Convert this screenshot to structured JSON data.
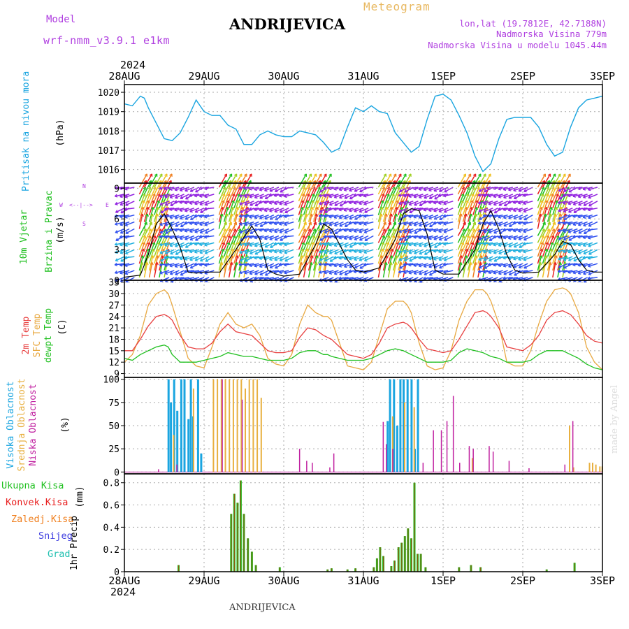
{
  "header": {
    "model_label": "Model",
    "model_name": "wrf-nmm_v3.9.1  e1km",
    "station": "ANDRIJEVICA",
    "meteogram": "Meteogram",
    "lonlat": "lon,lat (19.7812E, 42.7188N)",
    "altitude": "Nadmorska Visina 779m",
    "model_altitude": "Nadmorska Visina u modelu 1045.44m",
    "footer_station": "ANDRIJEVICA",
    "credit": "made by Angel"
  },
  "colors": {
    "pressure": "#1aa5e0",
    "wind_label": "#20c020",
    "temp2m": "#e84040",
    "sfc": "#e8a840",
    "dewpt": "#20c020",
    "cloud_high": "#1aa5e0",
    "cloud_mid": "#e8b040",
    "cloud_low": "#c020a0",
    "precip_total": "#20c020",
    "precip_conv": "#e82020",
    "precip_frozen": "#f08020",
    "snow": "#4040e0",
    "hail": "#20c0b0",
    "model_purple": "#b040e0"
  },
  "chart_data": [
    {
      "id": "pressure",
      "type": "line",
      "title": "",
      "ylabel": "Pritisak na nivou mora",
      "unit": "(hPa)",
      "ylim": [
        1015.3,
        1020.4
      ],
      "yticks": [
        "1016",
        "1017",
        "1018",
        "1019",
        "1020"
      ],
      "x_days": [
        0,
        0.1,
        0.2,
        0.25,
        0.3,
        0.4,
        0.5,
        0.6,
        0.7,
        0.8,
        0.9,
        1.0,
        1.1,
        1.2,
        1.3,
        1.4,
        1.5,
        1.6,
        1.7,
        1.8,
        1.9,
        2.0,
        2.1,
        2.2,
        2.3,
        2.4,
        2.5,
        2.6,
        2.7,
        2.8,
        2.9,
        3.0,
        3.1,
        3.2,
        3.3,
        3.4,
        3.5,
        3.6,
        3.7,
        3.8,
        3.9,
        4.0,
        4.1,
        4.2,
        4.3,
        4.4,
        4.5,
        4.6,
        4.7,
        4.8,
        4.9,
        5.0,
        5.1,
        5.2,
        5.3,
        5.4,
        5.5,
        5.6,
        5.7,
        5.8,
        5.9,
        6.0
      ],
      "series": [
        {
          "values": [
            1019.4,
            1019.3,
            1019.8,
            1019.7,
            1019.2,
            1018.4,
            1017.6,
            1017.5,
            1017.9,
            1018.7,
            1019.6,
            1019.0,
            1018.8,
            1018.8,
            1018.3,
            1018.1,
            1017.3,
            1017.3,
            1017.8,
            1018.0,
            1017.8,
            1017.7,
            1017.7,
            1018.0,
            1017.9,
            1017.8,
            1017.4,
            1016.9,
            1017.1,
            1018.2,
            1019.2,
            1019.0,
            1019.3,
            1019.0,
            1018.9,
            1017.9,
            1017.4,
            1016.9,
            1017.2,
            1018.6,
            1019.8,
            1019.9,
            1019.6,
            1018.8,
            1017.9,
            1016.7,
            1015.9,
            1016.3,
            1017.6,
            1018.6,
            1018.7,
            1018.7,
            1018.7,
            1018.2,
            1017.3,
            1016.7,
            1016.9,
            1018.2,
            1019.2,
            1019.6,
            1019.7,
            1019.8
          ]
        }
      ]
    },
    {
      "id": "wind",
      "type": "line",
      "title": "",
      "ylabel": "10m Vjetar Brzina i Pravac",
      "ylabel_line1": "10m Vjetar",
      "ylabel_line2": "Brzina i Pravac",
      "unit": "(m/s)",
      "ylim": [
        0,
        9.5
      ],
      "yticks": [
        "0",
        "3",
        "6",
        "9"
      ],
      "compass": {
        "n": "N",
        "s": "S",
        "e": "E",
        "w": "W"
      },
      "x_days": [
        0,
        0.2,
        0.3,
        0.4,
        0.5,
        0.6,
        0.7,
        0.8,
        0.9,
        1.0,
        1.2,
        1.4,
        1.5,
        1.6,
        1.7,
        1.8,
        1.9,
        2.0,
        2.2,
        2.4,
        2.5,
        2.6,
        2.7,
        2.8,
        2.9,
        3.0,
        3.2,
        3.4,
        3.5,
        3.6,
        3.7,
        3.8,
        3.9,
        4.0,
        4.2,
        4.4,
        4.5,
        4.6,
        4.7,
        4.8,
        4.9,
        5.0,
        5.2,
        5.4,
        5.5,
        5.6,
        5.7,
        5.8,
        5.9,
        6.0
      ],
      "series": [
        {
          "values": [
            0.3,
            0.5,
            2.5,
            5.5,
            6.5,
            5.0,
            3.2,
            0.8,
            0.7,
            0.8,
            0.8,
            3.0,
            4.2,
            5.3,
            4.0,
            1.0,
            0.6,
            0.4,
            0.6,
            3.5,
            5.5,
            5.0,
            3.5,
            2.0,
            1.0,
            0.8,
            1.2,
            4.0,
            6.5,
            7.0,
            6.8,
            4.5,
            1.0,
            0.6,
            0.6,
            3.0,
            5.5,
            6.8,
            5.0,
            2.5,
            1.0,
            0.7,
            0.8,
            2.5,
            3.8,
            3.5,
            2.0,
            1.0,
            0.8,
            0.8
          ]
        }
      ],
      "note": "colored wind direction arrows drawn across panel"
    },
    {
      "id": "temperature",
      "type": "line",
      "title": "",
      "ylabel": "2m Temp SFC Temp dewpt Temp",
      "label_2m": "2m Temp",
      "label_sfc": "SFC Temp",
      "label_dewpt": "dewpt Temp",
      "unit": "(C)",
      "ylim": [
        8,
        33.5
      ],
      "yticks": [
        "9",
        "12",
        "15",
        "18",
        "21",
        "24",
        "27",
        "30",
        "33"
      ],
      "x_days": [
        0,
        0.1,
        0.2,
        0.3,
        0.4,
        0.5,
        0.55,
        0.6,
        0.7,
        0.8,
        0.9,
        1.0,
        1.1,
        1.2,
        1.3,
        1.4,
        1.5,
        1.6,
        1.7,
        1.8,
        1.9,
        2.0,
        2.1,
        2.2,
        2.3,
        2.4,
        2.5,
        2.55,
        2.6,
        2.7,
        2.8,
        2.9,
        3.0,
        3.1,
        3.2,
        3.3,
        3.4,
        3.5,
        3.55,
        3.6,
        3.7,
        3.8,
        3.9,
        4.0,
        4.1,
        4.2,
        4.3,
        4.4,
        4.5,
        4.55,
        4.6,
        4.7,
        4.8,
        4.9,
        5.0,
        5.1,
        5.2,
        5.3,
        5.4,
        5.5,
        5.55,
        5.6,
        5.7,
        5.8,
        5.9,
        6.0
      ],
      "series": [
        {
          "name": "2m Temp",
          "values": [
            15,
            15,
            18,
            21.5,
            24,
            24.5,
            24,
            23,
            19,
            16,
            15.5,
            15.5,
            17,
            20,
            22,
            20,
            19.5,
            19,
            17,
            15,
            14.5,
            14.5,
            15,
            18.5,
            21,
            20.5,
            19,
            18.5,
            18,
            16,
            14,
            13.5,
            13,
            14,
            17,
            21,
            22,
            22.5,
            22,
            21,
            18,
            15.5,
            15,
            14.5,
            15,
            18,
            21.5,
            25,
            25.5,
            25,
            24,
            21,
            16,
            15.5,
            15,
            16.5,
            19,
            23,
            25,
            25.5,
            25,
            24.5,
            22,
            19,
            17.5,
            17
          ]
        },
        {
          "name": "SFC Temp",
          "values": [
            12,
            14,
            19,
            27,
            30,
            31,
            30,
            27,
            20,
            13,
            11,
            10.5,
            16,
            22,
            25,
            22,
            21,
            22,
            19,
            13,
            11.5,
            11,
            14,
            22,
            27,
            25,
            24,
            24,
            23,
            17,
            11,
            10.5,
            10,
            12,
            19,
            26,
            28,
            28,
            27,
            25,
            17,
            11,
            10,
            10.5,
            15,
            23,
            28,
            31,
            31,
            30,
            28,
            22,
            12,
            11,
            11,
            15,
            22,
            28,
            31,
            31.5,
            31,
            30,
            25,
            16,
            12,
            10
          ]
        },
        {
          "name": "dewpt Temp",
          "values": [
            13,
            12.5,
            14,
            15,
            16,
            16.5,
            16,
            14,
            12,
            12,
            12,
            12.5,
            13,
            13.5,
            14.5,
            14,
            13.5,
            13.5,
            13,
            12.5,
            12.5,
            12.5,
            13,
            14.5,
            15,
            15,
            14,
            14,
            13.5,
            13,
            12.5,
            12.5,
            12.5,
            13,
            14,
            15,
            15.5,
            15,
            14.5,
            14,
            13,
            12,
            12,
            12,
            12.5,
            14.5,
            15.5,
            15,
            14.5,
            14,
            13.5,
            13,
            12,
            12,
            12,
            12.5,
            14,
            15,
            15,
            15,
            14.5,
            14,
            13,
            11.5,
            10.5,
            10
          ]
        }
      ]
    },
    {
      "id": "clouds",
      "type": "bar",
      "title": "",
      "ylabel": "Visoka Oblacnost Srednja Oblacnost Niska Oblacnost",
      "label_high": "Visoka Oblacnost",
      "label_mid": "Srednja Oblacnost",
      "label_low": "Niska Oblacnost",
      "unit": "(%)",
      "ylim": [
        -2,
        102
      ],
      "yticks": [
        "0",
        "25",
        "50",
        "75",
        "100"
      ],
      "high_x": [
        0.55,
        0.58,
        0.62,
        0.66,
        0.71,
        0.75,
        0.8,
        0.83,
        0.86,
        0.92,
        0.96,
        3.3,
        3.33,
        3.38,
        3.42,
        3.46,
        3.5,
        3.55,
        3.6,
        3.64,
        3.68
      ],
      "high_values": [
        100,
        75,
        100,
        66,
        100,
        100,
        57,
        100,
        60,
        100,
        20,
        55,
        100,
        100,
        50,
        100,
        100,
        100,
        100,
        25,
        100
      ],
      "mid_x": [
        0.6,
        0.85,
        1.1,
        1.15,
        1.2,
        1.25,
        1.3,
        1.35,
        1.4,
        1.45,
        1.5,
        1.55,
        1.6,
        1.65,
        1.7,
        3.35,
        3.5,
        3.62,
        4.35,
        5.57,
        5.62,
        5.82,
        5.86,
        5.9,
        5.95,
        5.98
      ],
      "mid_values": [
        40,
        90,
        100,
        100,
        100,
        100,
        100,
        100,
        100,
        100,
        90,
        100,
        100,
        100,
        80,
        60,
        75,
        70,
        15,
        50,
        5,
        10,
        10,
        8,
        6,
        6
      ],
      "low_x": [
        0.4,
        0.63,
        1.2,
        1.45,
        2.17,
        2.26,
        2.33,
        2.55,
        2.6,
        3.22,
        3.26,
        3.34,
        3.72,
        3.85,
        3.95,
        4.02,
        4.1,
        4.18,
        4.3,
        4.35,
        4.55,
        4.6,
        4.8,
        5.05,
        5.5,
        5.6
      ],
      "low_values": [
        3,
        8,
        100,
        78,
        25,
        12,
        10,
        5,
        20,
        54,
        30,
        25,
        10,
        45,
        45,
        55,
        82,
        10,
        28,
        25,
        28,
        22,
        12,
        4,
        8,
        55
      ]
    },
    {
      "id": "precip",
      "type": "bar",
      "title": "",
      "ylabel": "1hr Precip",
      "unit": "(mm)",
      "ylim": [
        0,
        0.88
      ],
      "yticks": [
        "0",
        "0.2",
        "0.4",
        "0.6",
        "0.8"
      ],
      "legend": [
        "Ukupna  Kisa",
        "Konvek.Kisa",
        "Zaledj.Kisa",
        "Snijeg",
        "Grad"
      ],
      "x": [
        0.68,
        1.34,
        1.38,
        1.42,
        1.46,
        1.5,
        1.55,
        1.6,
        1.65,
        1.95,
        2.55,
        2.6,
        2.8,
        2.9,
        3.13,
        3.17,
        3.21,
        3.25,
        3.35,
        3.39,
        3.44,
        3.48,
        3.52,
        3.56,
        3.6,
        3.64,
        3.68,
        3.72,
        3.78,
        4.2,
        4.35,
        4.47,
        5.3,
        5.65
      ],
      "values": [
        0.06,
        0.52,
        0.7,
        0.62,
        0.82,
        0.52,
        0.3,
        0.18,
        0.06,
        0.04,
        0.02,
        0.03,
        0.02,
        0.03,
        0.04,
        0.12,
        0.22,
        0.14,
        0.05,
        0.1,
        0.22,
        0.26,
        0.32,
        0.39,
        0.3,
        0.8,
        0.16,
        0.16,
        0.04,
        0.04,
        0.06,
        0.04,
        0.02,
        0.08
      ]
    }
  ],
  "xaxis": {
    "year": "2024",
    "labels": [
      "28AUG",
      "29AUG",
      "30AUG",
      "31AUG",
      "1SEP",
      "2SEP",
      "3SEP"
    ]
  }
}
